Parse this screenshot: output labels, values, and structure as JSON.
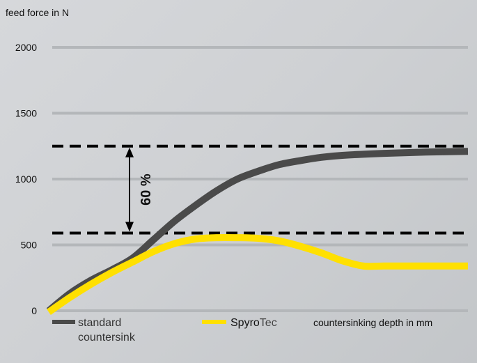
{
  "chart_data": {
    "type": "line",
    "ylabel": "feed force in N",
    "xlabel": "countersinking depth in mm",
    "ylim": [
      0,
      2000
    ],
    "yticks": [
      0,
      500,
      1000,
      1500,
      2000
    ],
    "grid": true,
    "legend_placement": "bottom",
    "series": [
      {
        "name": "standard countersink",
        "name_lines": [
          "standard",
          "countersink"
        ],
        "color": "#4a4a4a",
        "x": [
          0,
          0.05,
          0.1,
          0.15,
          0.2,
          0.25,
          0.3,
          0.35,
          0.4,
          0.45,
          0.5,
          0.55,
          0.6,
          0.65,
          0.7,
          0.8,
          0.9,
          1.0
        ],
        "y": [
          0,
          130,
          230,
          310,
          400,
          540,
          680,
          800,
          910,
          1000,
          1060,
          1110,
          1140,
          1165,
          1180,
          1195,
          1205,
          1210
        ]
      },
      {
        "name": "SpyroTec",
        "name_parts": [
          "Spyro",
          "Tec"
        ],
        "color": "#ffe000",
        "x": [
          0,
          0.05,
          0.1,
          0.15,
          0.2,
          0.25,
          0.3,
          0.35,
          0.4,
          0.45,
          0.5,
          0.55,
          0.6,
          0.65,
          0.7,
          0.75,
          0.8,
          0.85,
          0.9,
          1.0
        ],
        "y": [
          -10,
          100,
          200,
          290,
          370,
          450,
          510,
          545,
          555,
          555,
          550,
          530,
          490,
          440,
          380,
          340,
          340,
          340,
          340,
          340
        ]
      }
    ],
    "reference_lines": [
      1250,
      590
    ],
    "annotation": "60 %"
  }
}
